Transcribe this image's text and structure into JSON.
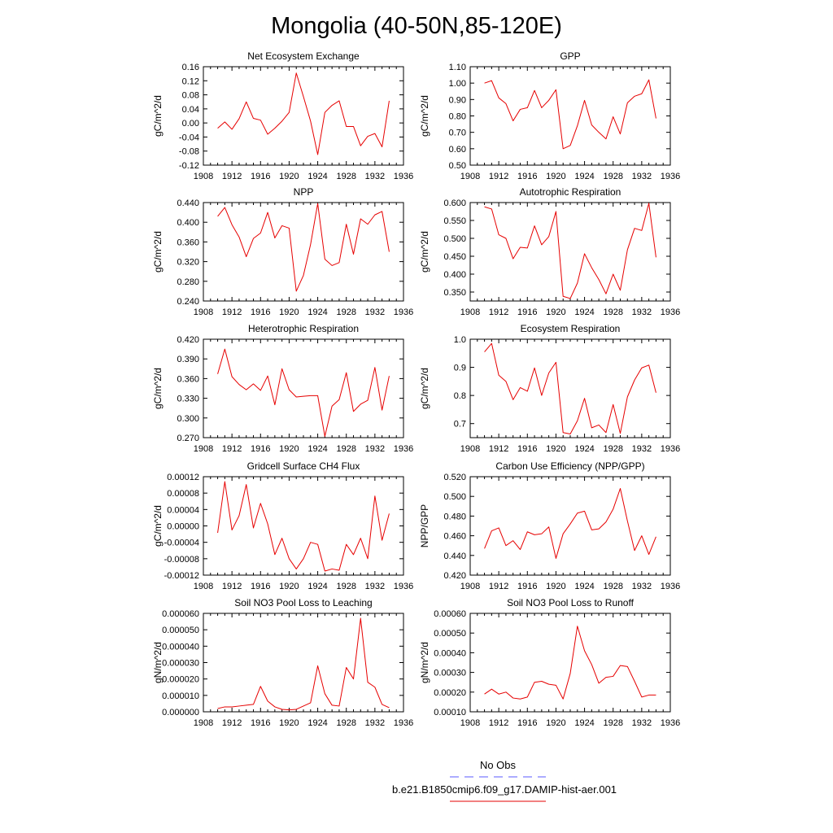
{
  "title": "Mongolia (40-50N,85-120E)",
  "legend": {
    "items": [
      {
        "label": "No Obs",
        "color": "#5a5aff",
        "dash": "dashed"
      },
      {
        "label": "b.e21.B1850cmip6.f09_g17.DAMIP-hist-aer.001",
        "color": "#e60000",
        "dash": "solid"
      }
    ]
  },
  "chart_data": [
    {
      "type": "line",
      "title": "Net Ecosystem Exchange",
      "ylabel": "gC/m^2/d",
      "xlim": [
        1908,
        1936
      ],
      "xticks": [
        "1908",
        "1912",
        "1916",
        "1920",
        "1924",
        "1928",
        "1932",
        "1936"
      ],
      "ylim": [
        -0.12,
        0.16
      ],
      "yticks": [
        "-0.12",
        "-0.08",
        "-0.04",
        "0.00",
        "0.04",
        "0.08",
        "0.12",
        "0.16"
      ],
      "series": [
        {
          "color": "#e60000",
          "x": [
            1910,
            1911,
            1912,
            1913,
            1914,
            1915,
            1916,
            1917,
            1918,
            1919,
            1920,
            1921,
            1922,
            1923,
            1924,
            1925,
            1926,
            1927,
            1928,
            1929,
            1930,
            1931,
            1932,
            1933,
            1934
          ],
          "values": [
            -0.015,
            0.003,
            -0.018,
            0.012,
            0.06,
            0.013,
            0.008,
            -0.032,
            -0.015,
            0.005,
            0.03,
            0.142,
            0.075,
            0.005,
            -0.09,
            0.03,
            0.05,
            0.063,
            -0.01,
            -0.01,
            -0.065,
            -0.038,
            -0.03,
            -0.068,
            0.063
          ]
        }
      ]
    },
    {
      "type": "line",
      "title": "GPP",
      "ylabel": "gC/m^2/d",
      "xlim": [
        1908,
        1936
      ],
      "xticks": [
        "1908",
        "1912",
        "1916",
        "1920",
        "1924",
        "1928",
        "1932",
        "1936"
      ],
      "ylim": [
        0.5,
        1.1
      ],
      "yticks": [
        "0.50",
        "0.60",
        "0.70",
        "0.80",
        "0.90",
        "1.00",
        "1.10"
      ],
      "series": [
        {
          "color": "#e60000",
          "x": [
            1910,
            1911,
            1912,
            1913,
            1914,
            1915,
            1916,
            1917,
            1918,
            1919,
            1920,
            1921,
            1922,
            1923,
            1924,
            1925,
            1926,
            1927,
            1928,
            1929,
            1930,
            1931,
            1932,
            1933,
            1934
          ],
          "values": [
            1.0,
            1.015,
            0.91,
            0.875,
            0.77,
            0.84,
            0.85,
            0.955,
            0.85,
            0.895,
            0.96,
            0.6,
            0.62,
            0.74,
            0.895,
            0.745,
            0.7,
            0.66,
            0.795,
            0.69,
            0.88,
            0.92,
            0.935,
            1.02,
            0.785
          ]
        }
      ]
    },
    {
      "type": "line",
      "title": "NPP",
      "ylabel": "gC/m^2/d",
      "xlim": [
        1908,
        1936
      ],
      "xticks": [
        "1908",
        "1912",
        "1916",
        "1920",
        "1924",
        "1928",
        "1932",
        "1936"
      ],
      "ylim": [
        0.24,
        0.44
      ],
      "yticks": [
        "0.240",
        "0.280",
        "0.320",
        "0.360",
        "0.400",
        "0.440"
      ],
      "series": [
        {
          "color": "#e60000",
          "x": [
            1910,
            1911,
            1912,
            1913,
            1914,
            1915,
            1916,
            1917,
            1918,
            1919,
            1920,
            1921,
            1922,
            1923,
            1924,
            1925,
            1926,
            1927,
            1928,
            1929,
            1930,
            1931,
            1932,
            1933,
            1934
          ],
          "values": [
            0.412,
            0.43,
            0.395,
            0.37,
            0.33,
            0.367,
            0.378,
            0.42,
            0.368,
            0.393,
            0.388,
            0.26,
            0.292,
            0.355,
            0.438,
            0.325,
            0.312,
            0.318,
            0.396,
            0.335,
            0.407,
            0.396,
            0.415,
            0.422,
            0.34
          ]
        }
      ]
    },
    {
      "type": "line",
      "title": "Autotrophic Respiration",
      "ylabel": "gC/m^2/d",
      "xlim": [
        1908,
        1936
      ],
      "xticks": [
        "1908",
        "1912",
        "1916",
        "1920",
        "1924",
        "1928",
        "1932",
        "1936"
      ],
      "ylim": [
        0.325,
        0.6
      ],
      "yticks": [
        "0.350",
        "0.400",
        "0.450",
        "0.500",
        "0.550",
        "0.600"
      ],
      "series": [
        {
          "color": "#e60000",
          "x": [
            1910,
            1911,
            1912,
            1913,
            1914,
            1915,
            1916,
            1917,
            1918,
            1919,
            1920,
            1921,
            1922,
            1923,
            1924,
            1925,
            1926,
            1927,
            1928,
            1929,
            1930,
            1931,
            1932,
            1933,
            1934
          ],
          "values": [
            0.588,
            0.582,
            0.51,
            0.5,
            0.443,
            0.475,
            0.473,
            0.535,
            0.482,
            0.505,
            0.575,
            0.338,
            0.332,
            0.375,
            0.457,
            0.418,
            0.385,
            0.345,
            0.4,
            0.355,
            0.468,
            0.528,
            0.522,
            0.598,
            0.447
          ]
        }
      ]
    },
    {
      "type": "line",
      "title": "Heterotrophic Respiration",
      "ylabel": "gC/m^2/d",
      "xlim": [
        1908,
        1936
      ],
      "xticks": [
        "1908",
        "1912",
        "1916",
        "1920",
        "1924",
        "1928",
        "1932",
        "1936"
      ],
      "ylim": [
        0.27,
        0.42
      ],
      "yticks": [
        "0.270",
        "0.300",
        "0.330",
        "0.360",
        "0.390",
        "0.420"
      ],
      "series": [
        {
          "color": "#e60000",
          "x": [
            1910,
            1911,
            1912,
            1913,
            1914,
            1915,
            1916,
            1917,
            1918,
            1919,
            1920,
            1921,
            1922,
            1923,
            1924,
            1925,
            1926,
            1927,
            1928,
            1929,
            1930,
            1931,
            1932,
            1933,
            1934
          ],
          "values": [
            0.367,
            0.405,
            0.363,
            0.351,
            0.343,
            0.352,
            0.342,
            0.364,
            0.32,
            0.375,
            0.343,
            0.332,
            0.333,
            0.334,
            0.334,
            0.272,
            0.318,
            0.328,
            0.369,
            0.31,
            0.321,
            0.327,
            0.377,
            0.312,
            0.364
          ]
        }
      ]
    },
    {
      "type": "line",
      "title": "Ecosystem Respiration",
      "ylabel": "gC/m^2/d",
      "xlim": [
        1908,
        1936
      ],
      "xticks": [
        "1908",
        "1912",
        "1916",
        "1920",
        "1924",
        "1928",
        "1932",
        "1936"
      ],
      "ylim": [
        0.65,
        1.0
      ],
      "yticks": [
        "0.7",
        "0.8",
        "0.9",
        "1.0"
      ],
      "series": [
        {
          "color": "#e60000",
          "x": [
            1910,
            1911,
            1912,
            1913,
            1914,
            1915,
            1916,
            1917,
            1918,
            1919,
            1920,
            1921,
            1922,
            1923,
            1924,
            1925,
            1926,
            1927,
            1928,
            1929,
            1930,
            1931,
            1932,
            1933,
            1934
          ],
          "values": [
            0.955,
            0.985,
            0.872,
            0.85,
            0.785,
            0.828,
            0.815,
            0.898,
            0.8,
            0.88,
            0.918,
            0.668,
            0.663,
            0.71,
            0.79,
            0.685,
            0.695,
            0.668,
            0.768,
            0.665,
            0.795,
            0.855,
            0.898,
            0.908,
            0.81
          ]
        }
      ]
    },
    {
      "type": "line",
      "title": "Gridcell Surface CH4 Flux",
      "ylabel": "gC/m^2/d",
      "xlim": [
        1908,
        1936
      ],
      "xticks": [
        "1908",
        "1912",
        "1916",
        "1920",
        "1924",
        "1928",
        "1932",
        "1936"
      ],
      "ylim": [
        -0.00012,
        0.00012
      ],
      "yticks": [
        "-0.00012",
        "-0.00008",
        "-0.00004",
        "0.00000",
        "0.00004",
        "0.00008",
        "0.00012"
      ],
      "series": [
        {
          "color": "#e60000",
          "x": [
            1910,
            1911,
            1912,
            1913,
            1914,
            1915,
            1916,
            1917,
            1918,
            1919,
            1920,
            1921,
            1922,
            1923,
            1924,
            1925,
            1926,
            1927,
            1928,
            1929,
            1930,
            1931,
            1932,
            1933,
            1934
          ],
          "values": [
            -1.7e-05,
            0.000108,
            -1e-05,
            2.5e-05,
            0.000101,
            -5e-06,
            5.5e-05,
            5e-06,
            -7e-05,
            -3e-05,
            -8e-05,
            -0.000105,
            -8e-05,
            -4e-05,
            -4.5e-05,
            -0.00011,
            -0.000105,
            -0.000108,
            -4.5e-05,
            -7e-05,
            -3e-05,
            -8e-05,
            7.3e-05,
            -3.5e-05,
            3e-05
          ]
        }
      ]
    },
    {
      "type": "line",
      "title": "Carbon Use Efficiency (NPP/GPP)",
      "ylabel": "NPP/GPP",
      "xlim": [
        1908,
        1936
      ],
      "xticks": [
        "1908",
        "1912",
        "1916",
        "1920",
        "1924",
        "1928",
        "1932",
        "1936"
      ],
      "ylim": [
        0.42,
        0.52
      ],
      "yticks": [
        "0.420",
        "0.440",
        "0.460",
        "0.480",
        "0.500",
        "0.520"
      ],
      "series": [
        {
          "color": "#e60000",
          "x": [
            1910,
            1911,
            1912,
            1913,
            1914,
            1915,
            1916,
            1917,
            1918,
            1919,
            1920,
            1921,
            1922,
            1923,
            1924,
            1925,
            1926,
            1927,
            1928,
            1929,
            1930,
            1931,
            1932,
            1933,
            1934
          ],
          "values": [
            0.447,
            0.465,
            0.468,
            0.45,
            0.455,
            0.446,
            0.464,
            0.461,
            0.462,
            0.469,
            0.437,
            0.462,
            0.472,
            0.483,
            0.485,
            0.466,
            0.467,
            0.474,
            0.487,
            0.508,
            0.475,
            0.445,
            0.46,
            0.441,
            0.459
          ]
        }
      ]
    },
    {
      "type": "line",
      "title": "Soil NO3 Pool Loss to Leaching",
      "ylabel": "gN/m^2/d",
      "xlim": [
        1908,
        1936
      ],
      "xticks": [
        "1908",
        "1912",
        "1916",
        "1920",
        "1924",
        "1928",
        "1932",
        "1936"
      ],
      "ylim": [
        0.0,
        6e-05
      ],
      "yticks": [
        "0.000000",
        "0.000010",
        "0.000020",
        "0.000030",
        "0.000040",
        "0.000050",
        "0.000060"
      ],
      "series": [
        {
          "color": "#e60000",
          "x": [
            1910,
            1911,
            1912,
            1913,
            1914,
            1915,
            1916,
            1917,
            1918,
            1919,
            1920,
            1921,
            1922,
            1923,
            1924,
            1925,
            1926,
            1927,
            1928,
            1929,
            1930,
            1931,
            1932,
            1933,
            1934
          ],
          "values": [
            2e-06,
            3e-06,
            3e-06,
            3.5e-06,
            4e-06,
            4.5e-06,
            1.55e-05,
            6.5e-06,
            3e-06,
            1.5e-06,
            1.2e-06,
            1.5e-06,
            3.5e-06,
            5.5e-06,
            2.8e-05,
            1.1e-05,
            4e-06,
            3.5e-06,
            2.7e-05,
            2e-05,
            5.7e-05,
            1.8e-05,
            1.5e-05,
            4.5e-06,
            2.5e-06
          ]
        }
      ]
    },
    {
      "type": "line",
      "title": "Soil NO3 Pool Loss to Runoff",
      "ylabel": "gN/m^2/d",
      "xlim": [
        1908,
        1936
      ],
      "xticks": [
        "1908",
        "1912",
        "1916",
        "1920",
        "1924",
        "1928",
        "1932",
        "1936"
      ],
      "ylim": [
        0.0001,
        0.0006
      ],
      "yticks": [
        "0.00010",
        "0.00020",
        "0.00030",
        "0.00040",
        "0.00050",
        "0.00060"
      ],
      "series": [
        {
          "color": "#e60000",
          "x": [
            1910,
            1911,
            1912,
            1913,
            1914,
            1915,
            1916,
            1917,
            1918,
            1919,
            1920,
            1921,
            1922,
            1923,
            1924,
            1925,
            1926,
            1927,
            1928,
            1929,
            1930,
            1931,
            1932,
            1933,
            1934
          ],
          "values": [
            0.00019,
            0.000215,
            0.00019,
            0.0002,
            0.00017,
            0.000165,
            0.000175,
            0.00025,
            0.000255,
            0.00024,
            0.000235,
            0.000165,
            0.000295,
            0.000535,
            0.00041,
            0.00034,
            0.000245,
            0.000275,
            0.00028,
            0.000335,
            0.00033,
            0.000255,
            0.000175,
            0.000185,
            0.000185
          ]
        }
      ]
    }
  ]
}
